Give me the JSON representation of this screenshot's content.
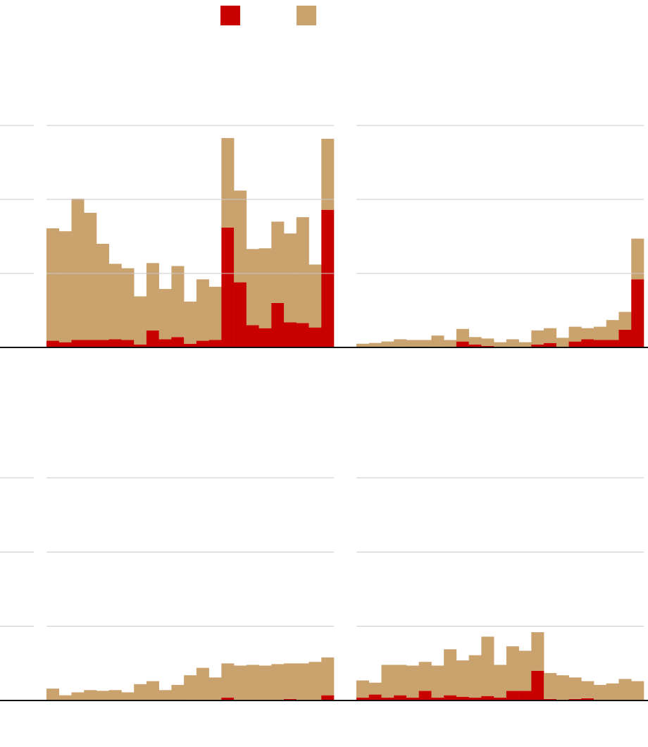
{
  "chart_data": [
    {
      "type": "bar",
      "stacked": true,
      "grid": true,
      "categories": [
        null,
        null,
        null,
        null,
        null,
        null,
        null,
        null,
        null,
        null,
        null,
        null,
        null,
        null,
        null,
        null,
        null,
        null,
        null,
        null,
        null,
        null,
        null
      ],
      "ylim": [
        0,
        3
      ],
      "yticks": [
        0,
        1,
        2,
        3
      ],
      "series": [
        {
          "color": "#c80000",
          "values": [
            0.09,
            0.07,
            0.1,
            0.1,
            0.1,
            0.11,
            0.1,
            0.04,
            0.23,
            0.11,
            0.14,
            0.05,
            0.09,
            0.1,
            1.62,
            0.88,
            0.3,
            0.26,
            0.6,
            0.34,
            0.33,
            0.27,
            1.86
          ]
        },
        {
          "color": "#c9a26e",
          "values": [
            1.52,
            1.5,
            1.91,
            1.72,
            1.3,
            1.02,
            0.97,
            0.65,
            0.91,
            0.68,
            0.96,
            0.57,
            0.83,
            0.72,
            1.21,
            1.24,
            1.03,
            1.08,
            1.1,
            1.2,
            1.43,
            0.85,
            0.96
          ]
        }
      ]
    },
    {
      "type": "bar",
      "stacked": true,
      "grid": true,
      "categories": [
        null,
        null,
        null,
        null,
        null,
        null,
        null,
        null,
        null,
        null,
        null,
        null,
        null,
        null,
        null,
        null,
        null,
        null,
        null,
        null,
        null,
        null,
        null
      ],
      "ylim": [
        0,
        3
      ],
      "yticks": [
        0,
        1,
        2,
        3
      ],
      "series": [
        {
          "color": "#c80000",
          "values": [
            0,
            0,
            0,
            0.01,
            0,
            0,
            0.01,
            0,
            0.08,
            0.04,
            0.02,
            0,
            0.01,
            0,
            0.04,
            0.06,
            0,
            0.08,
            0.11,
            0.1,
            0.1,
            0.24,
            0.92
          ]
        },
        {
          "color": "#c9a26e",
          "values": [
            0.05,
            0.06,
            0.08,
            0.1,
            0.1,
            0.1,
            0.15,
            0.1,
            0.17,
            0.1,
            0.1,
            0.07,
            0.1,
            0.07,
            0.19,
            0.2,
            0.13,
            0.2,
            0.15,
            0.18,
            0.27,
            0.24,
            0.55
          ]
        }
      ]
    },
    {
      "type": "bar",
      "stacked": true,
      "grid": true,
      "categories": [
        null,
        null,
        null,
        null,
        null,
        null,
        null,
        null,
        null,
        null,
        null,
        null,
        null,
        null,
        null,
        null,
        null,
        null,
        null,
        null,
        null,
        null,
        null
      ],
      "ylim": [
        0,
        3
      ],
      "yticks": [
        0,
        1,
        2,
        3
      ],
      "series": [
        {
          "color": "#c80000",
          "values": [
            0,
            0,
            0,
            0,
            0,
            0,
            0,
            0,
            0,
            0,
            0,
            0.01,
            0.01,
            0.01,
            0.04,
            0.01,
            0.01,
            0.01,
            0.01,
            0.02,
            0.01,
            0.01,
            0.07
          ]
        },
        {
          "color": "#c9a26e",
          "values": [
            0.16,
            0.07,
            0.11,
            0.14,
            0.13,
            0.14,
            0.11,
            0.22,
            0.26,
            0.14,
            0.21,
            0.33,
            0.43,
            0.3,
            0.46,
            0.46,
            0.47,
            0.46,
            0.48,
            0.48,
            0.49,
            0.51,
            0.51
          ]
        }
      ]
    },
    {
      "type": "bar",
      "stacked": true,
      "grid": true,
      "categories": [
        null,
        null,
        null,
        null,
        null,
        null,
        null,
        null,
        null,
        null,
        null,
        null,
        null,
        null,
        null,
        null,
        null,
        null,
        null,
        null,
        null,
        null,
        null
      ],
      "ylim": [
        0,
        3
      ],
      "yticks": [
        0,
        1,
        2,
        3
      ],
      "series": [
        {
          "color": "#c80000",
          "values": [
            0.04,
            0.08,
            0.04,
            0.07,
            0.04,
            0.13,
            0.04,
            0.07,
            0.05,
            0.04,
            0.06,
            0.04,
            0.13,
            0.13,
            0.4,
            0.02,
            0.01,
            0.02,
            0.03,
            0,
            0,
            0,
            0
          ]
        },
        {
          "color": "#c9a26e",
          "values": [
            0.23,
            0.16,
            0.44,
            0.41,
            0.43,
            0.39,
            0.43,
            0.62,
            0.49,
            0.57,
            0.8,
            0.44,
            0.6,
            0.54,
            0.52,
            0.35,
            0.33,
            0.29,
            0.23,
            0.21,
            0.23,
            0.29,
            0.26
          ]
        }
      ]
    }
  ]
}
